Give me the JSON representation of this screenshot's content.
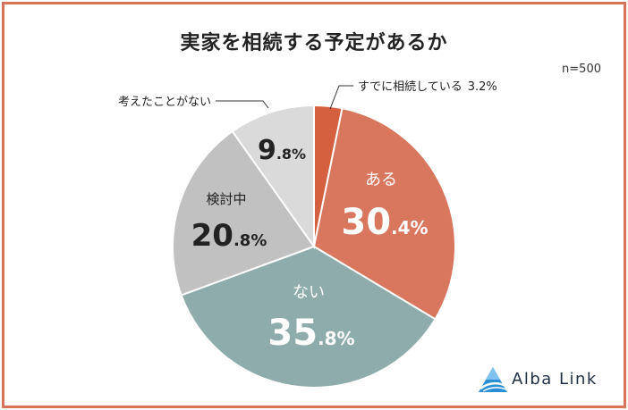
{
  "chart_data": {
    "type": "pie",
    "title": "実家を相続する予定があるか",
    "sample_size": "n=500",
    "slices": [
      {
        "label": "すでに相続している",
        "value": 3.2,
        "value_text": "3.2%",
        "color": "#d5603f"
      },
      {
        "label": "ある",
        "value": 30.4,
        "int_part": "30",
        "dec_part": ".4%",
        "color": "#d9775e"
      },
      {
        "label": "ない",
        "value": 35.8,
        "int_part": "35",
        "dec_part": ".8%",
        "color": "#8eacab"
      },
      {
        "label": "検討中",
        "value": 20.8,
        "int_part": "20",
        "dec_part": ".8%",
        "color": "#c1c1c1"
      },
      {
        "label": "考えたことがない",
        "value": 9.8,
        "int_part": "9",
        "dec_part": ".8%",
        "color": "#dadada"
      }
    ]
  },
  "brand": {
    "name": "Alba Link"
  }
}
